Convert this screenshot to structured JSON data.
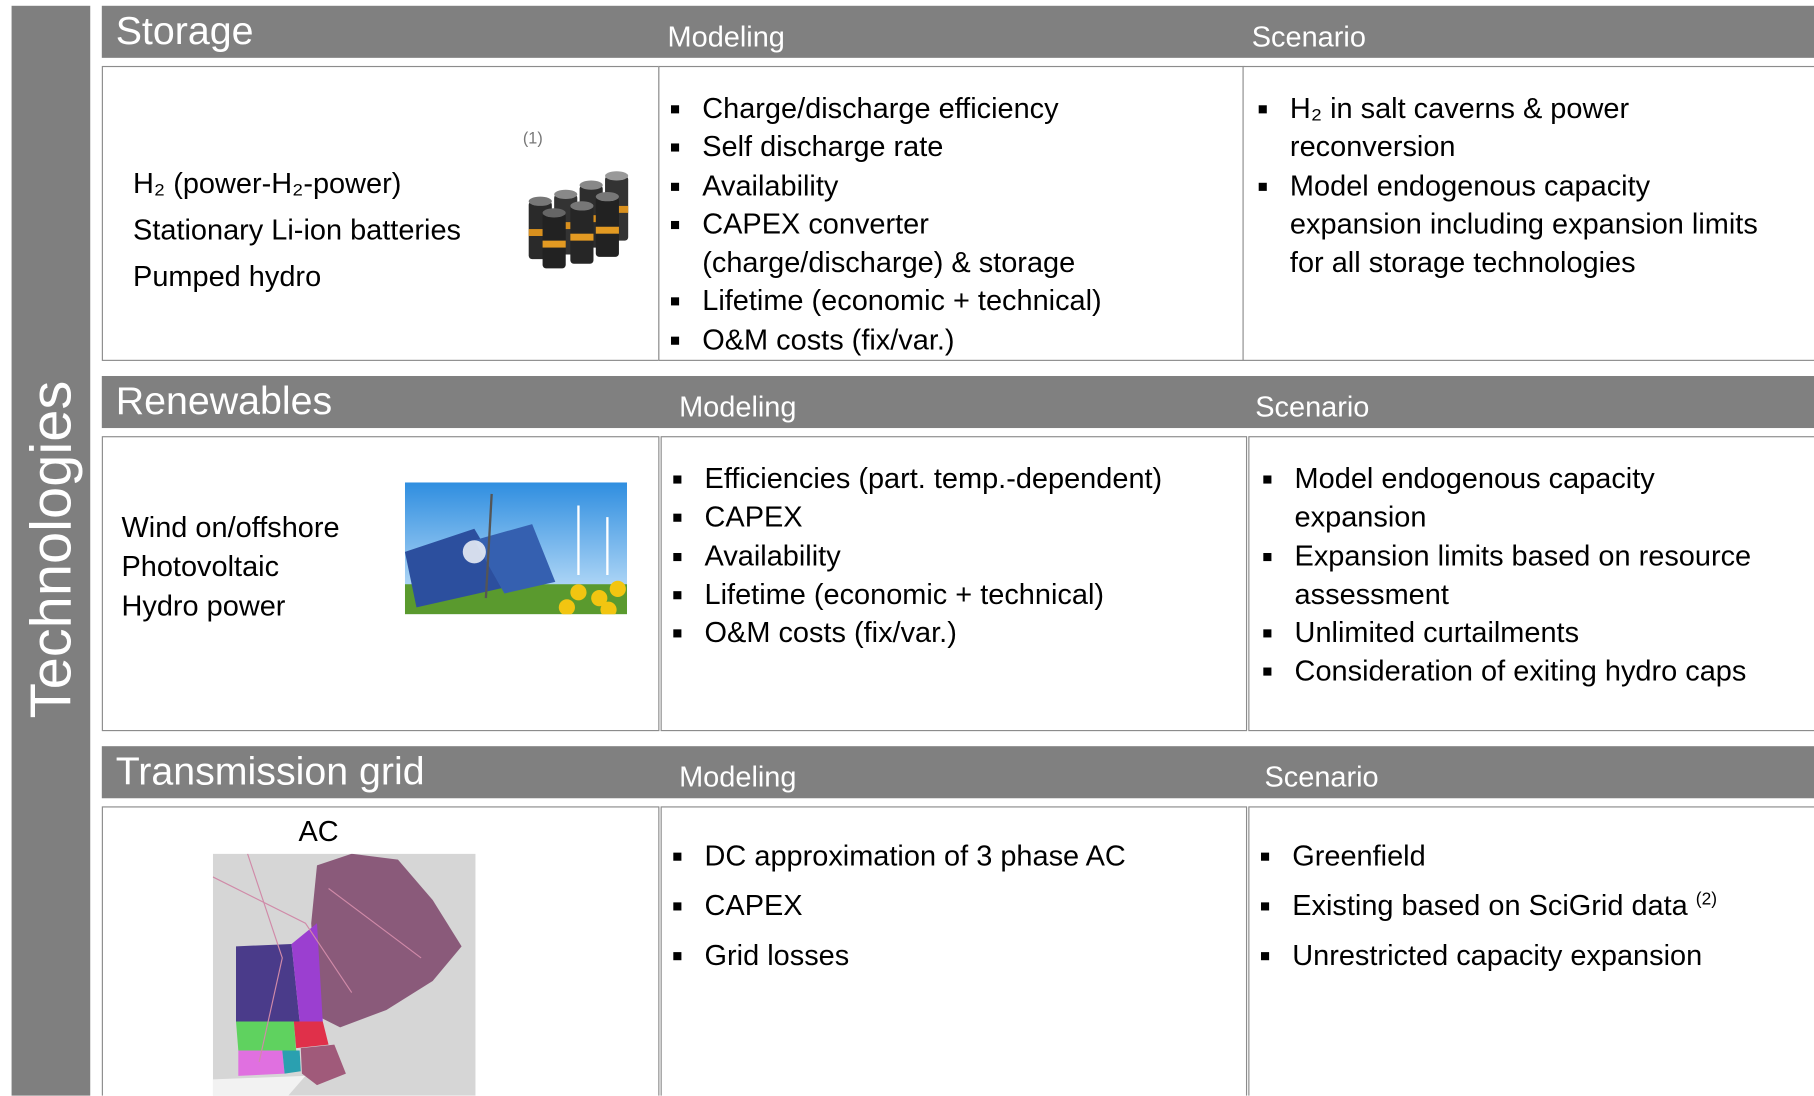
{
  "side_label": "Technologies",
  "sections": [
    {
      "title": "Storage",
      "modeling_header": "Modeling",
      "scenario_header": "Scenario",
      "items": [
        "H₂ (power-H₂-power)",
        "Stationary Li-ion batteries",
        "Pumped hydro"
      ],
      "image_note": "(1)",
      "modeling": [
        "Charge/discharge efficiency",
        "Self discharge rate",
        "Availability",
        "CAPEX converter (charge/discharge) & storage",
        "Lifetime (economic + technical)",
        "O&M costs (fix/var.)"
      ],
      "scenario": [
        "H₂ in salt caverns & power reconversion",
        "Model endogenous capacity expansion including expansion limits for all storage technologies"
      ]
    },
    {
      "title": "Renewables",
      "modeling_header": "Modeling",
      "scenario_header": "Scenario",
      "items": [
        "Wind on/offshore",
        "Photovoltaic",
        "Hydro power"
      ],
      "modeling": [
        "Efficiencies (part. temp.-dependent)",
        "CAPEX",
        "Availability",
        "Lifetime (economic + technical)",
        "O&M costs (fix/var.)"
      ],
      "scenario": [
        "Model endogenous capacity expansion",
        "Expansion limits based on resource assessment",
        "Unlimited curtailments",
        "Consideration of exiting hydro caps"
      ]
    },
    {
      "title": "Transmission grid",
      "modeling_header": "Modeling",
      "scenario_header": "Scenario",
      "items": [
        "AC"
      ],
      "modeling": [
        "DC approximation of 3 phase AC",
        "CAPEX",
        "Grid losses"
      ],
      "scenario": [
        "Greenfield",
        {
          "text": "Existing based on SciGrid data",
          "note": "(2)"
        },
        "Unrestricted capacity expansion"
      ]
    }
  ]
}
